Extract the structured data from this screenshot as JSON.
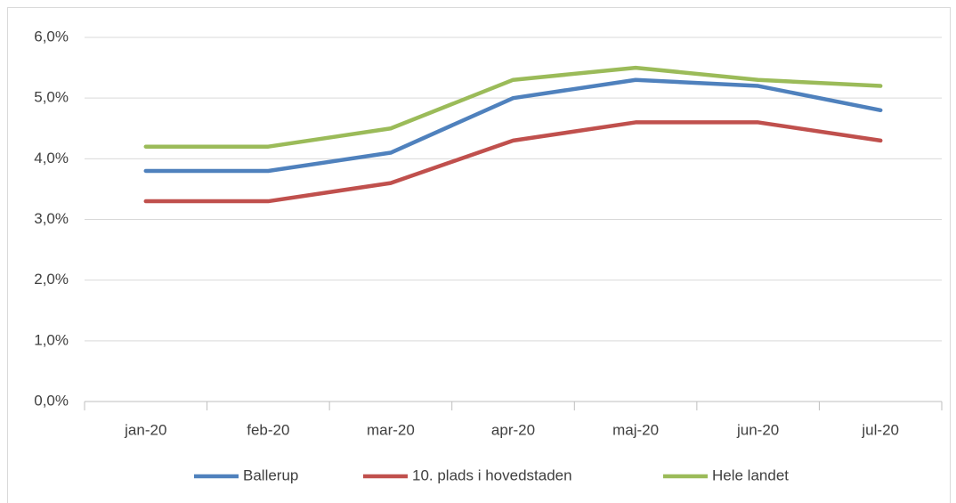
{
  "chart_data": {
    "type": "line",
    "categories": [
      "jan-20",
      "feb-20",
      "mar-20",
      "apr-20",
      "maj-20",
      "jun-20",
      "jul-20"
    ],
    "series": [
      {
        "name": "Ballerup",
        "color": "#4f81bd",
        "values": [
          3.8,
          3.8,
          4.1,
          5.0,
          5.3,
          5.2,
          4.8
        ]
      },
      {
        "name": "10. plads i hovedstaden",
        "color": "#c0504d",
        "values": [
          3.3,
          3.3,
          3.6,
          4.3,
          4.6,
          4.6,
          4.3
        ]
      },
      {
        "name": "Hele landet",
        "color": "#9bbb59",
        "values": [
          4.2,
          4.2,
          4.5,
          5.3,
          5.5,
          5.3,
          5.2
        ]
      }
    ],
    "ylim": [
      0,
      6
    ],
    "yticks": [
      {
        "value": 0,
        "label": "0,0%"
      },
      {
        "value": 1,
        "label": "1,0%"
      },
      {
        "value": 2,
        "label": "2,0%"
      },
      {
        "value": 3,
        "label": "3,0%"
      },
      {
        "value": 4,
        "label": "4,0%"
      },
      {
        "value": 5,
        "label": "5,0%"
      },
      {
        "value": 6,
        "label": "6,0%"
      }
    ],
    "grid": true,
    "legend": "bottom"
  }
}
